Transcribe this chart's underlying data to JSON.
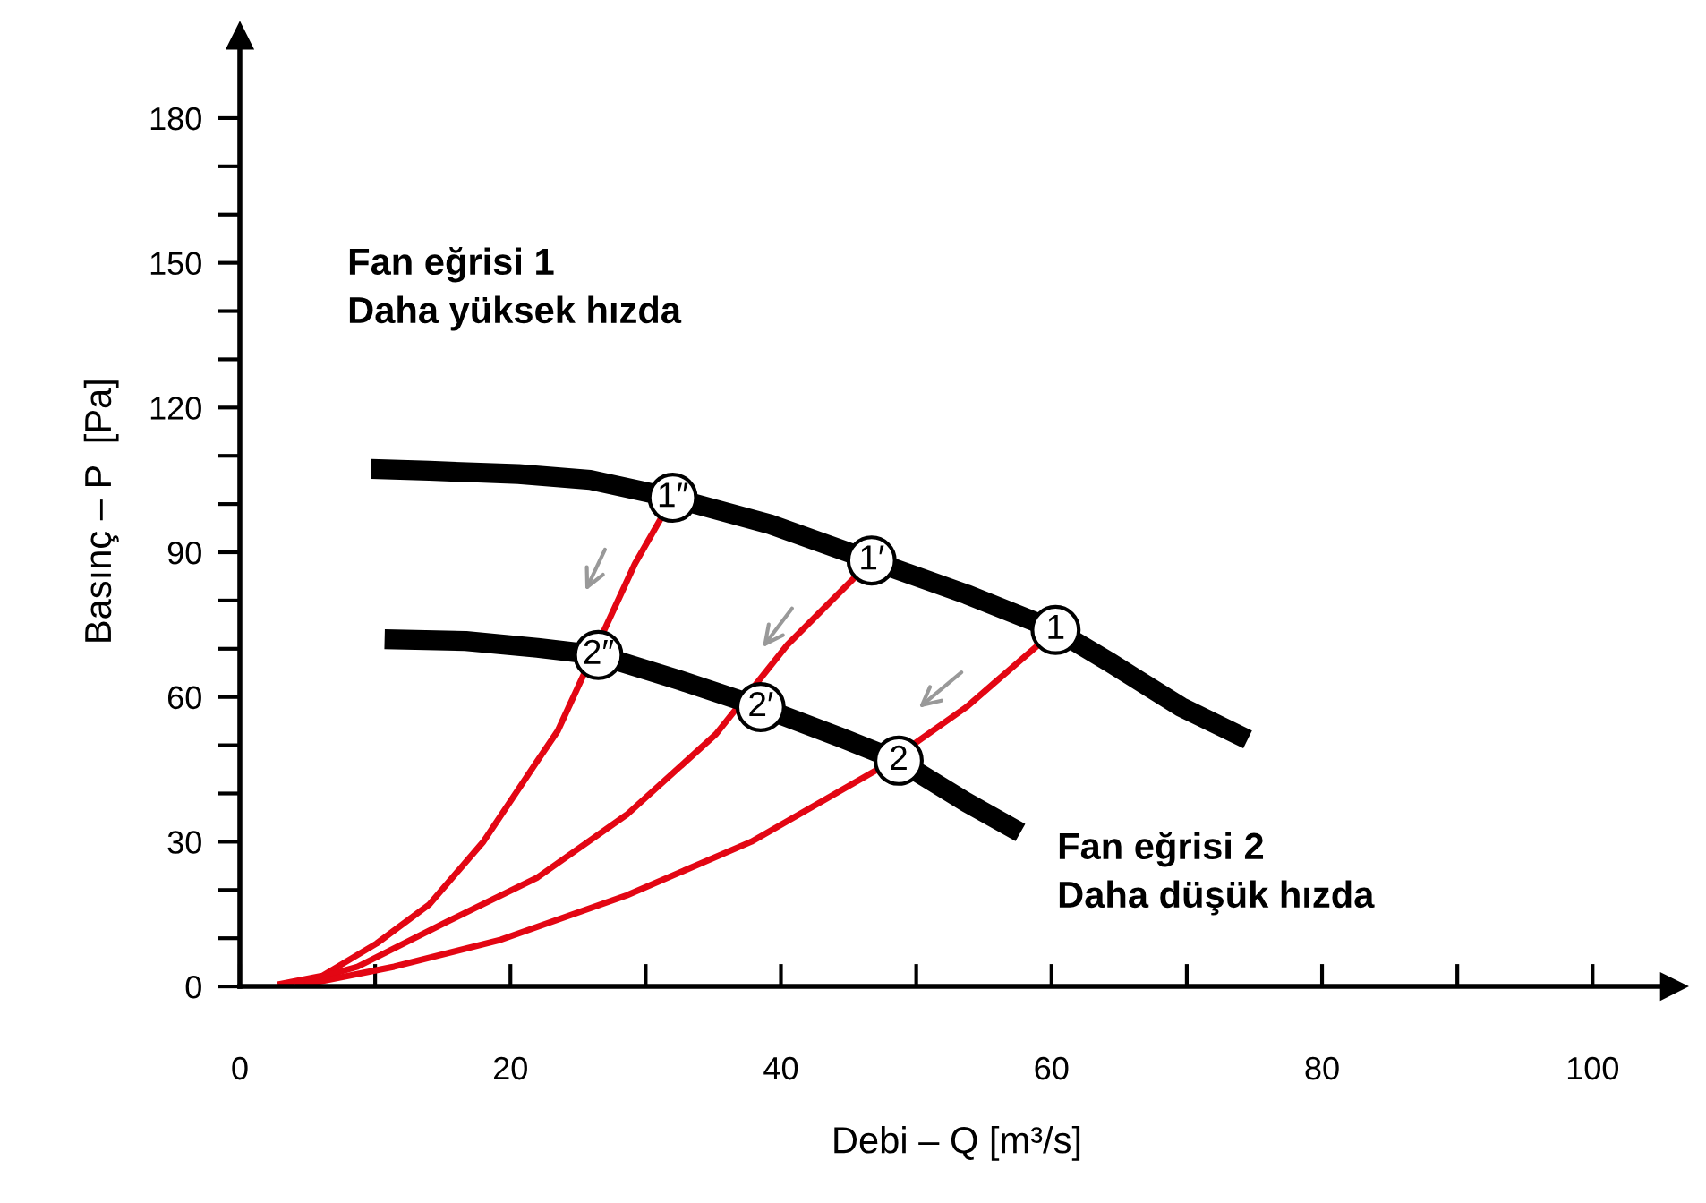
{
  "chart_data": {
    "type": "line",
    "xlabel": "Debi – Q [m³/s]",
    "ylabel": "Basınç – P  [Pa]",
    "xlim": [
      0,
      106
    ],
    "ylim": [
      0,
      197
    ],
    "xticks": [
      0,
      {
        "value": 10,
        "label": null
      },
      20,
      {
        "value": 30,
        "label": null
      },
      40,
      {
        "value": 50,
        "label": null
      },
      60,
      {
        "value": 70,
        "label": null
      },
      80,
      {
        "value": 90,
        "label": null
      },
      100
    ],
    "yticks": [
      0,
      {
        "value": 10,
        "label": null
      },
      {
        "value": 20,
        "label": null
      },
      30,
      {
        "value": 40,
        "label": null
      },
      {
        "value": 50,
        "label": null
      },
      60,
      {
        "value": 70,
        "label": null
      },
      {
        "value": 80,
        "label": null
      },
      90,
      {
        "value": 100,
        "label": null
      },
      {
        "value": 110,
        "label": null
      },
      120,
      {
        "value": 130,
        "label": null
      },
      {
        "value": 140,
        "label": null
      },
      150,
      {
        "value": 160,
        "label": null
      },
      {
        "value": 170,
        "label": null
      },
      180
    ],
    "grid": false,
    "series": [
      {
        "color": "#e30613",
        "x": [
          2.8,
          6.1,
          10.1,
          14,
          18,
          22,
          23.5,
          29.2,
          32
        ],
        "values": [
          0.4,
          2.2,
          8.9,
          17,
          30,
          46.8,
          53,
          87.6,
          101.3
        ]
      },
      {
        "color": "#e30613",
        "x": [
          4.1,
          8.7,
          15.3,
          22,
          28.6,
          35.2,
          40.5,
          46.7
        ],
        "values": [
          0.4,
          4.1,
          13.4,
          22.6,
          35.6,
          52.3,
          70.9,
          88.3
        ]
      },
      {
        "color": "#e30613",
        "x": [
          4.8,
          11.4,
          19.3,
          28.6,
          37.8,
          47.1,
          53.7,
          60.3
        ],
        "values": [
          0.4,
          4.1,
          9.7,
          18.9,
          30,
          44.9,
          57.9,
          73.9
        ]
      },
      {
        "color": "#000000",
        "x": [
          9.7,
          14,
          20.6,
          25.9,
          32,
          39.2,
          46.7,
          53.7,
          60.3,
          64.3,
          69.6,
          74.5
        ],
        "values": [
          107.3,
          106.9,
          106.2,
          105,
          101.3,
          95.8,
          88.3,
          81.3,
          73.9,
          67.2,
          57.9,
          51.2
        ]
      },
      {
        "color": "#000000",
        "x": [
          10.7,
          16.7,
          22,
          26.5,
          32.5,
          38.5,
          44.4,
          48.7,
          53.7,
          57.7
        ],
        "values": [
          72,
          71.6,
          70.2,
          68.7,
          63.5,
          57.9,
          51.6,
          46.8,
          38.2,
          31.9
        ]
      }
    ],
    "annotations": [
      "Fan eğrisi 1\nDaha yüksek hızda",
      "Fan eğrisi 2\nDaha düşük hızda",
      {
        "text": "1″",
        "x": 32,
        "y": 101.3
      },
      {
        "text": "1′",
        "x": 46.7,
        "y": 88.3
      },
      {
        "text": "1",
        "x": 60.3,
        "y": 73.9
      },
      {
        "text": "2″",
        "x": 26.5,
        "y": 68.7
      },
      {
        "text": "2′",
        "x": 38.5,
        "y": 57.9
      },
      {
        "text": "2",
        "x": 48.7,
        "y": 46.8
      }
    ]
  }
}
